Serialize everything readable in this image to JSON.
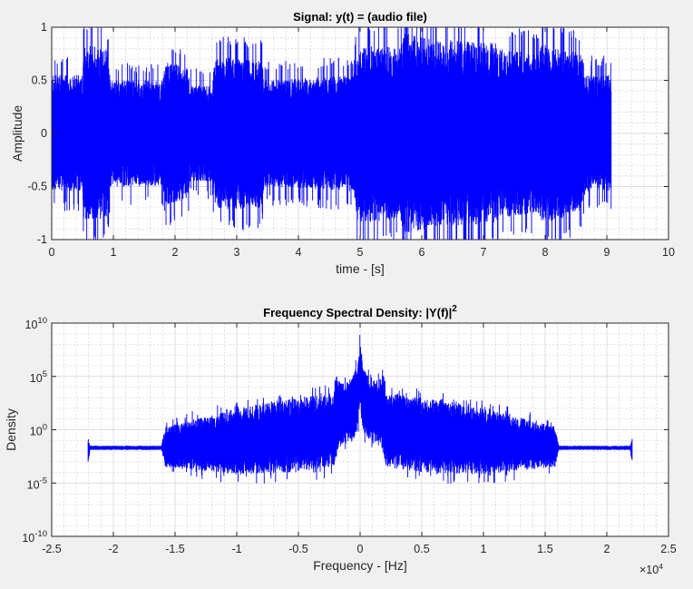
{
  "chart_data": [
    {
      "type": "line",
      "title": "Signal: y(t) = (audio file)",
      "xlabel": "time - [s]",
      "ylabel": "Amplitude",
      "xlim": [
        0,
        10
      ],
      "ylim": [
        -1,
        1
      ],
      "xticks": [
        "0",
        "1",
        "2",
        "3",
        "4",
        "5",
        "6",
        "7",
        "8",
        "9",
        "10"
      ],
      "yticks": [
        "-1",
        "-0.5",
        "0",
        "0.5",
        "1"
      ],
      "grid": true,
      "minor_grid": true,
      "color": "#0000ff",
      "duration_s": 9.07,
      "amplitude_envelope": [
        [
          0,
          0.55
        ],
        [
          0.5,
          0.55
        ],
        [
          0.52,
          0.85
        ],
        [
          0.9,
          0.8
        ],
        [
          0.95,
          0.5
        ],
        [
          1.8,
          0.5
        ],
        [
          1.85,
          0.68
        ],
        [
          2.2,
          0.62
        ],
        [
          2.25,
          0.45
        ],
        [
          2.6,
          0.45
        ],
        [
          2.65,
          0.72
        ],
        [
          3.4,
          0.7
        ],
        [
          3.45,
          0.5
        ],
        [
          4.9,
          0.55
        ],
        [
          4.95,
          0.85
        ],
        [
          5.65,
          0.8
        ],
        [
          5.7,
          0.95
        ],
        [
          6.4,
          0.85
        ],
        [
          6.45,
          0.88
        ],
        [
          7.2,
          0.85
        ],
        [
          7.25,
          0.8
        ],
        [
          7.9,
          0.75
        ],
        [
          7.95,
          0.85
        ],
        [
          8.6,
          0.75
        ],
        [
          8.65,
          0.55
        ],
        [
          9.07,
          0.55
        ]
      ]
    },
    {
      "type": "line",
      "title": "Frequency Spectral Density: |Y(f)|",
      "title_superscript": "2",
      "xlabel": "Frequency - [Hz]",
      "ylabel": "Density",
      "xlim": [
        -25000,
        25000
      ],
      "x_multiplier": "×10",
      "x_multiplier_exp": "4",
      "xticks": [
        "-2.5",
        "-2",
        "-1.5",
        "-1",
        "-0.5",
        "0",
        "0.5",
        "1",
        "1.5",
        "2",
        "2.5"
      ],
      "ylim_log10": [
        -10,
        10
      ],
      "yscale": "log",
      "yticks": [
        {
          "base": "10",
          "exp": "-10"
        },
        {
          "base": "10",
          "exp": "-5"
        },
        {
          "base": "10",
          "exp": "0"
        },
        {
          "base": "10",
          "exp": "5"
        },
        {
          "base": "10",
          "exp": "10"
        }
      ],
      "grid": true,
      "minor_grid": true,
      "color": "#0000ff",
      "frequency_range_hz": [
        -22050,
        22050
      ],
      "log10_density_envelope_by_abs_freq": [
        {
          "f": 0,
          "upper": 8.5,
          "lower": 2
        },
        {
          "f": 300,
          "upper": 6,
          "lower": -0.5
        },
        {
          "f": 800,
          "upper": 4.5,
          "lower": -1
        },
        {
          "f": 1700,
          "upper": 4.8,
          "lower": -1.5
        },
        {
          "f": 1900,
          "upper": 5.5,
          "lower": -2.5
        },
        {
          "f": 2100,
          "upper": 3.5,
          "lower": -3.5
        },
        {
          "f": 5000,
          "upper": 3,
          "lower": -4
        },
        {
          "f": 10000,
          "upper": 2,
          "lower": -4.2
        },
        {
          "f": 15800,
          "upper": 0.3,
          "lower": -3.5
        },
        {
          "f": 16100,
          "upper": -1.5,
          "lower": -1.9
        },
        {
          "f": 21900,
          "upper": -1.5,
          "lower": -1.9
        },
        {
          "f": 22050,
          "upper": -0.8,
          "lower": -3.5
        }
      ]
    }
  ]
}
